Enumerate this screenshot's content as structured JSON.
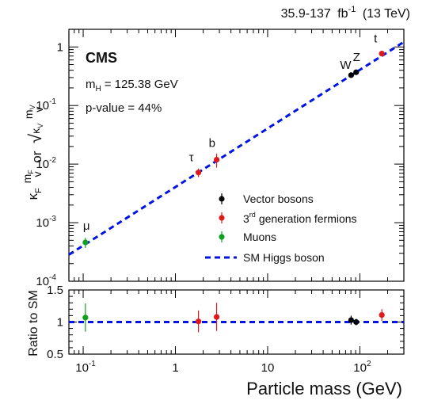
{
  "header": {
    "lumi": "35.9-137",
    "lumi_unit": "fb",
    "lumi_exp": "-1",
    "energy": "(13 TeV)"
  },
  "labels": {
    "experiment": "CMS",
    "mass_symbol": "m",
    "mass_sub": "H",
    "mass_value": "= 125.38 GeV",
    "pvalue": "p-value = 44%"
  },
  "legend": {
    "vector": "Vector bosons",
    "fermions_prefix": "3",
    "fermions_sup": "rd",
    "fermions_rest": "generation fermions",
    "muons": "Muons",
    "sm": "SM Higgs boson"
  },
  "colors": {
    "vector": "#000000",
    "fermion": "#e0191b",
    "muon": "#10a020",
    "sm_line": "#0014e6"
  },
  "chart_data": [
    {
      "type": "scatter",
      "panel": "main",
      "xlabel": "Particle mass (GeV)",
      "ylabel_parts": {
        "kF": "κ",
        "kF_sub": "F",
        "mF": "m",
        "mF_sub": "F",
        "v": "v",
        "or": "or",
        "sqrt": "√",
        "kV": "κ",
        "kV_sub": "V",
        "mV": "m",
        "mV_sub": "V"
      },
      "x_scale": "log",
      "y_scale": "log",
      "xlim": [
        0.07,
        300
      ],
      "ylim": [
        0.0001,
        2
      ],
      "x_ticks": [
        {
          "value": 0.1,
          "label": "10",
          "exp": "-1"
        },
        {
          "value": 1,
          "label": "1"
        },
        {
          "value": 10,
          "label": "10"
        },
        {
          "value": 100,
          "label": "10",
          "exp": "2"
        }
      ],
      "y_ticks": [
        {
          "value": 0.0001,
          "label": "10",
          "exp": "-4"
        },
        {
          "value": 0.001,
          "label": "10",
          "exp": "-3"
        },
        {
          "value": 0.01,
          "label": "10",
          "exp": "-2"
        },
        {
          "value": 0.1,
          "label": "10",
          "exp": "-1"
        },
        {
          "value": 1,
          "label": "1"
        }
      ],
      "sm_line": {
        "x": [
          0.07,
          300
        ],
        "slope_over_v": 246.22
      },
      "series": [
        {
          "name": "Vector bosons",
          "color_key": "vector",
          "points": [
            {
              "label": "W",
              "x": 80.4,
              "y": 0.33,
              "err_lo": 0.02,
              "err_hi": 0.02
            },
            {
              "label": "Z",
              "x": 91.2,
              "y": 0.37,
              "err_lo": 0.02,
              "err_hi": 0.02
            }
          ]
        },
        {
          "name": "3rd generation fermions",
          "color_key": "fermion",
          "points": [
            {
              "label": "τ",
              "x": 1.777,
              "y": 0.0072,
              "err_lo": 0.0012,
              "err_hi": 0.0012
            },
            {
              "label": "b",
              "x": 2.8,
              "y": 0.0119,
              "err_lo": 0.0032,
              "err_hi": 0.0032
            },
            {
              "label": "t",
              "x": 173,
              "y": 0.77,
              "err_lo": 0.07,
              "err_hi": 0.07
            }
          ]
        },
        {
          "name": "Muons",
          "color_key": "muon",
          "points": [
            {
              "label": "μ",
              "x": 0.1057,
              "y": 0.00046,
              "err_lo": 9e-05,
              "err_hi": 9e-05
            }
          ]
        }
      ]
    },
    {
      "type": "scatter",
      "panel": "ratio",
      "ylabel": "Ratio to SM",
      "x_scale": "log",
      "xlim": [
        0.07,
        300
      ],
      "ylim": [
        0.5,
        1.5
      ],
      "y_ticks": [
        {
          "value": 0.5,
          "label": "0.5"
        },
        {
          "value": 1,
          "label": "1"
        },
        {
          "value": 1.5,
          "label": "1.5"
        }
      ],
      "reference_line": 1.0,
      "points": [
        {
          "x": 0.1057,
          "y": 1.07,
          "err_lo": 0.22,
          "err_hi": 0.22,
          "color_key": "muon"
        },
        {
          "x": 1.777,
          "y": 1.01,
          "err_lo": 0.17,
          "err_hi": 0.17,
          "color_key": "fermion"
        },
        {
          "x": 2.8,
          "y": 1.08,
          "err_lo": 0.22,
          "err_hi": 0.22,
          "color_key": "fermion"
        },
        {
          "x": 80.4,
          "y": 1.03,
          "err_lo": 0.07,
          "err_hi": 0.07,
          "color_key": "vector"
        },
        {
          "x": 91.2,
          "y": 1.0,
          "err_lo": 0.05,
          "err_hi": 0.05,
          "color_key": "vector"
        },
        {
          "x": 173,
          "y": 1.11,
          "err_lo": 0.09,
          "err_hi": 0.09,
          "color_key": "fermion"
        }
      ]
    }
  ]
}
